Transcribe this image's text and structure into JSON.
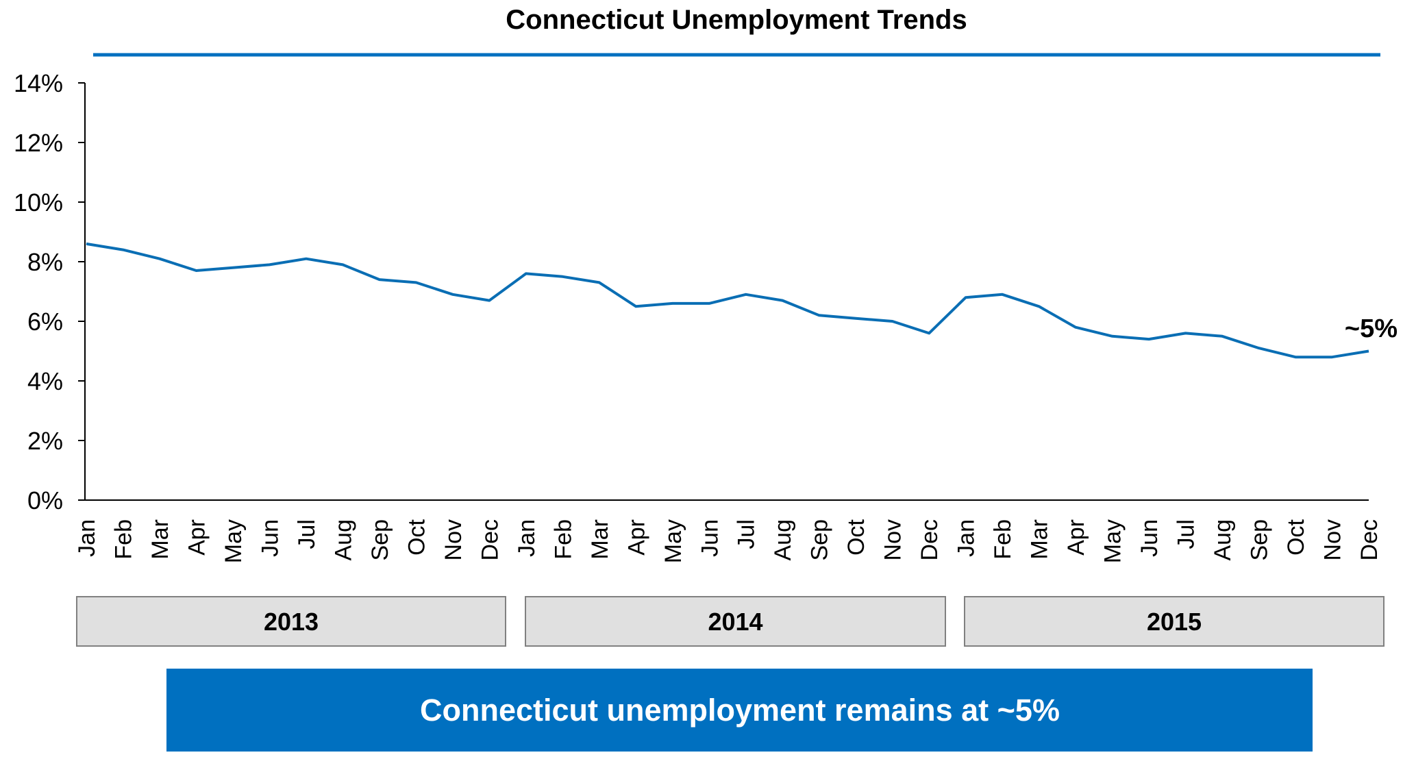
{
  "chart_data": {
    "type": "line",
    "title": "Connecticut Unemployment Trends",
    "xlabel": "",
    "ylabel": "",
    "ylim": [
      0,
      14
    ],
    "yticks": [
      "0%",
      "2%",
      "4%",
      "6%",
      "8%",
      "10%",
      "12%",
      "14%"
    ],
    "grid": false,
    "categories": [
      "Jan",
      "Feb",
      "Mar",
      "Apr",
      "May",
      "Jun",
      "Jul",
      "Aug",
      "Sep",
      "Oct",
      "Nov",
      "Dec",
      "Jan",
      "Feb",
      "Mar",
      "Apr",
      "May",
      "Jun",
      "Jul",
      "Aug",
      "Sep",
      "Oct",
      "Nov",
      "Dec",
      "Jan",
      "Feb",
      "Mar",
      "Apr",
      "May",
      "Jun",
      "Jul",
      "Aug",
      "Sep",
      "Oct",
      "Nov",
      "Dec"
    ],
    "groups": [
      "2013",
      "2014",
      "2015"
    ],
    "series": [
      {
        "values": [
          8.6,
          8.4,
          8.1,
          7.7,
          7.8,
          7.9,
          8.1,
          7.9,
          7.4,
          7.3,
          6.9,
          6.7,
          7.6,
          7.5,
          7.3,
          6.5,
          6.6,
          6.6,
          6.9,
          6.7,
          6.2,
          6.1,
          6.0,
          5.6,
          6.8,
          6.9,
          6.5,
          5.8,
          5.5,
          5.4,
          5.6,
          5.5,
          5.1,
          4.8,
          4.8,
          5.0
        ],
        "color": "#0a6eb4"
      }
    ],
    "annotation": "~5%",
    "callout": "Connecticut unemployment remains at ~5%",
    "colors": {
      "accent": "#0070c0",
      "group_box": "#e0e0e0"
    }
  }
}
